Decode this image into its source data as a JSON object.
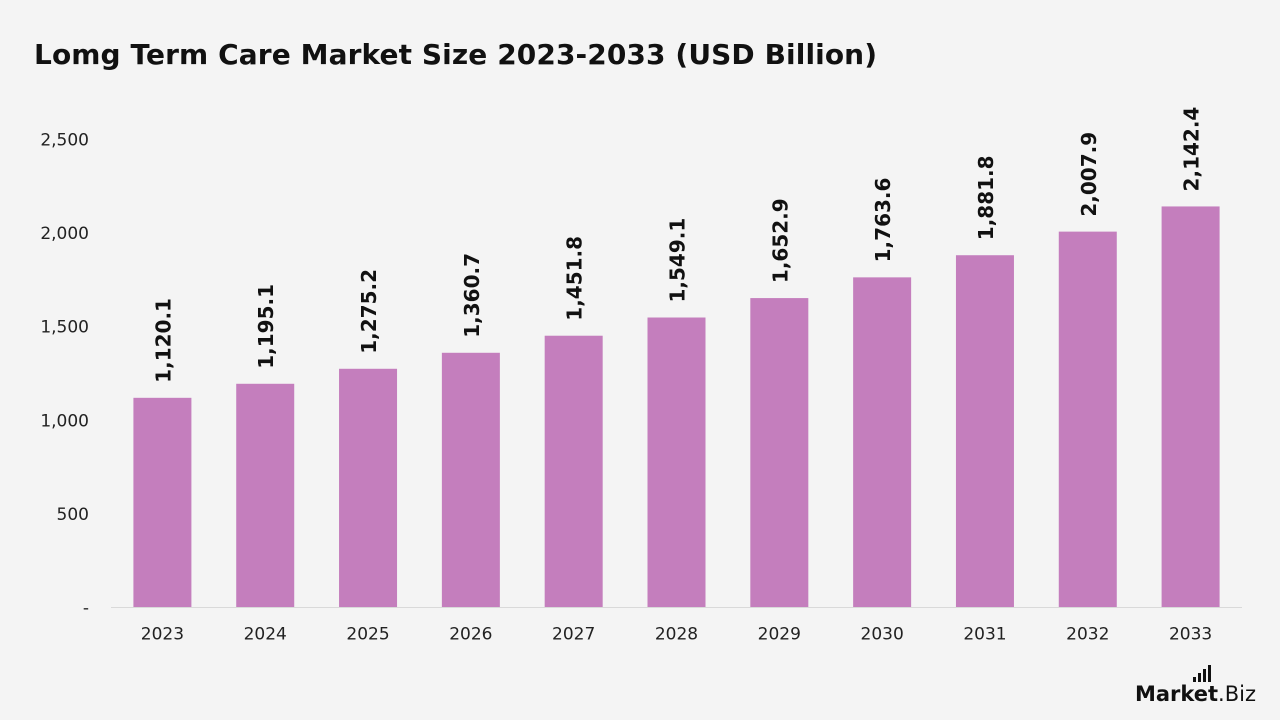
{
  "chart_data": {
    "type": "bar",
    "title": "Lomg Term Care Market Size 2023-2033 (USD Billion)",
    "categories": [
      "2023",
      "2024",
      "2025",
      "2026",
      "2027",
      "2028",
      "2029",
      "2030",
      "2031",
      "2032",
      "2033"
    ],
    "values": [
      1120.1,
      1195.1,
      1275.2,
      1360.7,
      1451.8,
      1549.1,
      1652.9,
      1763.6,
      1881.8,
      2007.9,
      2142.4
    ],
    "data_labels": [
      "1,120.1",
      "1,195.1",
      "1,275.2",
      "1,360.7",
      "1,451.8",
      "1,549.1",
      "1,652.9",
      "1,763.6",
      "1,881.8",
      "2,007.9",
      "2,142.4"
    ],
    "yticks": [
      0,
      500,
      1000,
      1500,
      2000,
      2500
    ],
    "ytick_labels": [
      "-",
      "500",
      "1,000",
      "1,500",
      "2,000",
      "2,500"
    ],
    "ylim": [
      0,
      2500
    ],
    "xlabel": "",
    "ylabel": "",
    "grid": false,
    "legend": "none",
    "bar_color": "#c47ebd",
    "axis_color": "#d9d9d9"
  },
  "branding": {
    "logo_name": "Market",
    "logo_suffix": ".Biz",
    "logo_icon": "signal-bars-icon"
  }
}
